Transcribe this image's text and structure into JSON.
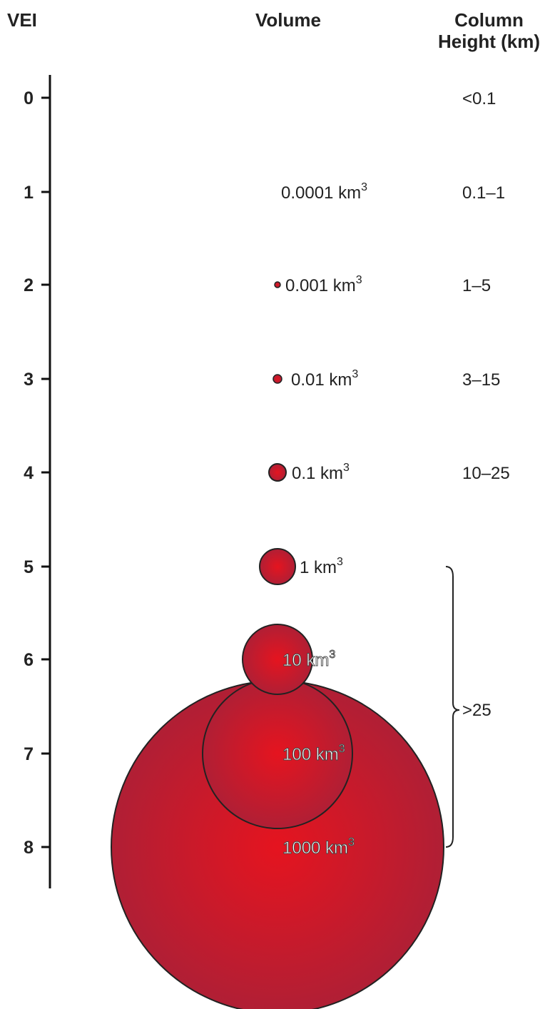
{
  "headers": {
    "vei": "VEI",
    "volume": "Volume",
    "column_height_line1": "Column",
    "column_height_line2": "Height (km)"
  },
  "rows": [
    {
      "vei": "0",
      "volume_number": "",
      "volume_unit": "",
      "volume_exponent": "",
      "column_height": "<0.1"
    },
    {
      "vei": "1",
      "volume_number": "0.0001",
      "volume_unit": "km",
      "volume_exponent": "3",
      "column_height": "0.1–1"
    },
    {
      "vei": "2",
      "volume_number": "0.001",
      "volume_unit": "km",
      "volume_exponent": "3",
      "column_height": "1–5"
    },
    {
      "vei": "3",
      "volume_number": "0.01",
      "volume_unit": "km",
      "volume_exponent": "3",
      "column_height": "3–15"
    },
    {
      "vei": "4",
      "volume_number": "0.1",
      "volume_unit": "km",
      "volume_exponent": "3",
      "column_height": "10–25"
    },
    {
      "vei": "5",
      "volume_number": "1",
      "volume_unit": "km",
      "volume_exponent": "3",
      "column_height": ""
    },
    {
      "vei": "6",
      "volume_number": "10",
      "volume_unit": "km",
      "volume_exponent": "3",
      "column_height": ""
    },
    {
      "vei": "7",
      "volume_number": "100",
      "volume_unit": "km",
      "volume_exponent": "3",
      "column_height": ""
    },
    {
      "vei": "8",
      "volume_number": "1000",
      "volume_unit": "km",
      "volume_exponent": "3",
      "column_height": ""
    }
  ],
  "bracket_label": ">25",
  "colors": {
    "circle_center": "#e5141f",
    "circle_edge": "#b01f35",
    "outline": "#222222",
    "axis": "#111111",
    "text": "#222222"
  }
}
